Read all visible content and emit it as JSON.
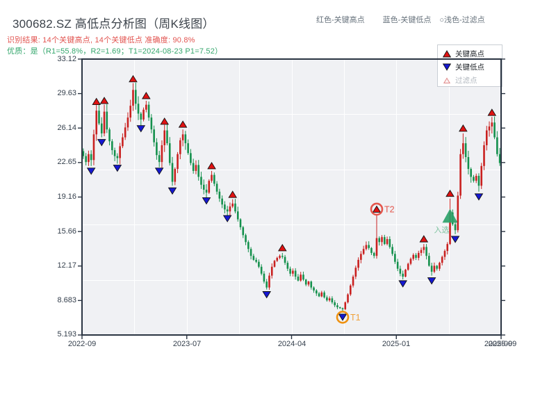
{
  "title": "300682.SZ 高低点分析图（周K线图）",
  "result_line": "识别结果: 14个关键高点, 14个关键低点  准确度: 90.8%",
  "quality_line": "优质：是（R1=55.8%，R2=1.69；T1=2024-08-23 P1=7.52）",
  "header_legend": {
    "high": "红色-关键高点",
    "low": "蓝色-关键低点",
    "filter": "○浅色-过滤点"
  },
  "legend": {
    "high": "关键高点",
    "low": "关键低点",
    "filter": "过滤点"
  },
  "colors": {
    "candle_up": "#c9201f",
    "candle_down": "#14904c",
    "marker_high": "#e01212",
    "marker_low": "#1518d2",
    "marker_filter_stroke": "#e08a8a",
    "marker_filter_fill": "#fdf0f0",
    "selection_fill": "#2ea26a",
    "selection_text": "#7cc29e",
    "axis": "#2a3442",
    "t1_ring": "#ef9211",
    "t1_text": "#f0a23a",
    "t2_ring": "#e4574d",
    "t2_text": "#e4574d"
  },
  "chart_data": {
    "type": "candlestick",
    "symbol": "300682.SZ",
    "period": "weekly",
    "title": "300682.SZ 高低点分析图（周K线图）",
    "ylim": [
      5.193,
      33.12
    ],
    "y_tick_labels": [
      "33.12",
      "29.63",
      "26.14",
      "22.65",
      "19.16",
      "15.66",
      "12.17",
      "8.683",
      "5.193"
    ],
    "x_tick_labels": [
      "2022-09",
      "2023-07",
      "2024-04",
      "2025-01",
      "2025-09"
    ],
    "x_tick_overlap_label": "2025-09",
    "grid": "on",
    "first_open": 23.8,
    "closes": [
      23.3,
      22.7,
      23.5,
      22.9,
      25.5,
      27.9,
      26.6,
      25.6,
      27.8,
      26.0,
      24.8,
      23.9,
      23.3,
      23.1,
      24.3,
      25.2,
      26.2,
      27.2,
      28.4,
      30.0,
      28.6,
      27.6,
      27.0,
      28.0,
      28.5,
      27.2,
      26.0,
      24.7,
      23.4,
      22.7,
      24.4,
      25.9,
      24.6,
      22.6,
      20.7,
      22.0,
      23.5,
      24.9,
      25.5,
      24.6,
      23.6,
      22.6,
      21.8,
      22.4,
      21.2,
      20.4,
      19.9,
      19.6,
      20.8,
      21.4,
      20.5,
      19.7,
      19.0,
      18.4,
      17.9,
      17.7,
      18.2,
      18.5,
      17.7,
      16.9,
      16.1,
      15.3,
      14.6,
      13.9,
      13.2,
      12.8,
      12.6,
      12.1,
      11.4,
      10.6,
      10.0,
      11.2,
      12.1,
      12.7,
      13.0,
      13.2,
      13.1,
      12.5,
      11.9,
      11.4,
      11.7,
      11.1,
      10.7,
      11.3,
      10.8,
      10.3,
      10.6,
      10.0,
      9.7,
      9.4,
      9.1,
      9.5,
      9.0,
      8.7,
      8.9,
      8.5,
      8.2,
      8.0,
      7.9,
      7.8,
      8.5,
      9.3,
      10.2,
      11.1,
      12.0,
      12.8,
      13.4,
      13.9,
      14.3,
      14.0,
      13.5,
      13.2,
      15.0,
      14.6,
      15.1,
      14.4,
      14.9,
      14.1,
      13.4,
      12.6,
      11.9,
      11.4,
      11.1,
      11.8,
      12.4,
      12.9,
      13.3,
      13.0,
      13.5,
      13.8,
      14.1,
      13.2,
      12.2,
      11.6,
      12.2,
      11.9,
      12.5,
      13.1,
      13.7,
      14.4,
      17.6,
      16.4,
      15.8,
      19.3,
      23.5,
      24.6,
      23.2,
      22.0,
      21.2,
      20.8,
      21.3,
      20.3,
      22.3,
      24.4,
      25.9,
      26.3,
      26.7,
      25.2,
      23.5,
      22.6
    ],
    "key_highs": [
      [
        5,
        28.3
      ],
      [
        8,
        28.4
      ],
      [
        19,
        30.6
      ],
      [
        24,
        28.9
      ],
      [
        31,
        26.3
      ],
      [
        38,
        26.0
      ],
      [
        49,
        21.8
      ],
      [
        57,
        18.9
      ],
      [
        76,
        13.5
      ],
      [
        112,
        17.4
      ],
      [
        130,
        14.4
      ],
      [
        140,
        19.0
      ],
      [
        145,
        25.6
      ],
      [
        156,
        27.2
      ]
    ],
    "key_lows": [
      [
        3,
        22.3
      ],
      [
        7,
        25.2
      ],
      [
        13,
        22.6
      ],
      [
        22,
        26.6
      ],
      [
        29,
        22.3
      ],
      [
        34,
        20.3
      ],
      [
        47,
        19.3
      ],
      [
        55,
        17.5
      ],
      [
        70,
        9.8
      ],
      [
        99,
        7.52
      ],
      [
        122,
        10.9
      ],
      [
        133,
        11.2
      ],
      [
        142,
        15.4
      ],
      [
        151,
        19.7
      ]
    ],
    "annotations": [
      {
        "label": "T1",
        "week": 99,
        "price": 7.52,
        "side": "low",
        "date": "2024-08-23"
      },
      {
        "label": "T2",
        "week": 112,
        "price": 17.4,
        "side": "high"
      }
    ],
    "selection": {
      "label": "入选",
      "week": 140,
      "price": 17.2
    }
  }
}
